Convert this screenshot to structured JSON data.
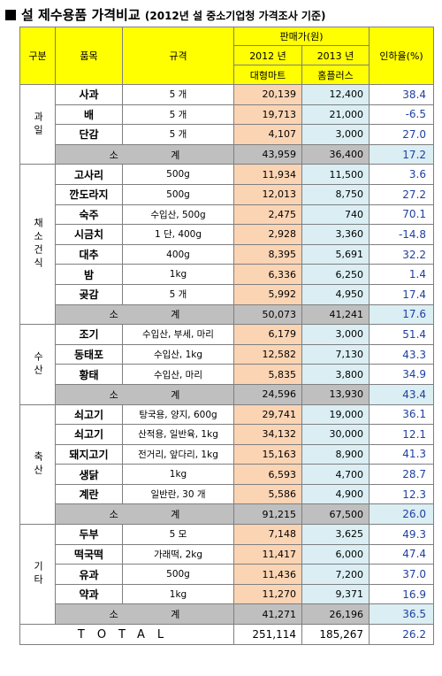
{
  "title": {
    "main": "설 제수용품 가격비교",
    "sub": "(2012년 설 중소기업청 가격조사 기준)"
  },
  "header": {
    "group": "구분",
    "item": "품목",
    "spec": "규격",
    "price": "판매가(원)",
    "y2012": "2012 년",
    "y2013": "2013 년",
    "store2012": "대형마트",
    "store2013": "홈플러스",
    "rate": "인하율(%)"
  },
  "groups": [
    {
      "name": "과일",
      "items": [
        {
          "name": "사과",
          "spec": "5 개",
          "p2012": "20,139",
          "p2013": "12,400",
          "rate": "38.4"
        },
        {
          "name": "배",
          "spec": "5 개",
          "p2012": "19,713",
          "p2013": "21,000",
          "rate": "-6.5"
        },
        {
          "name": "단감",
          "spec": "5 개",
          "p2012": "4,107",
          "p2013": "3,000",
          "rate": "27.0"
        }
      ],
      "subtotal": {
        "label": "소 계",
        "p2012": "43,959",
        "p2013": "36,400",
        "rate": "17.2"
      }
    },
    {
      "name": "채소건식",
      "items": [
        {
          "name": "고사리",
          "spec": "500g",
          "p2012": "11,934",
          "p2013": "11,500",
          "rate": "3.6"
        },
        {
          "name": "깐도라지",
          "spec": "500g",
          "p2012": "12,013",
          "p2013": "8,750",
          "rate": "27.2"
        },
        {
          "name": "숙주",
          "spec": "수입산, 500g",
          "p2012": "2,475",
          "p2013": "740",
          "rate": "70.1"
        },
        {
          "name": "시금치",
          "spec": "1 단, 400g",
          "p2012": "2,928",
          "p2013": "3,360",
          "rate": "-14.8"
        },
        {
          "name": "대추",
          "spec": "400g",
          "p2012": "8,395",
          "p2013": "5,691",
          "rate": "32.2"
        },
        {
          "name": "밤",
          "spec": "1kg",
          "p2012": "6,336",
          "p2013": "6,250",
          "rate": "1.4"
        },
        {
          "name": "곶감",
          "spec": "5 개",
          "p2012": "5,992",
          "p2013": "4,950",
          "rate": "17.4"
        }
      ],
      "subtotal": {
        "label": "소 계",
        "p2012": "50,073",
        "p2013": "41,241",
        "rate": "17.6"
      }
    },
    {
      "name": "수산",
      "items": [
        {
          "name": "조기",
          "spec": "수입산, 부세, 마리",
          "p2012": "6,179",
          "p2013": "3,000",
          "rate": "51.4"
        },
        {
          "name": "동태포",
          "spec": "수입산, 1kg",
          "p2012": "12,582",
          "p2013": "7,130",
          "rate": "43.3"
        },
        {
          "name": "황태",
          "spec": "수입산, 마리",
          "p2012": "5,835",
          "p2013": "3,800",
          "rate": "34.9"
        }
      ],
      "subtotal": {
        "label": "소 계",
        "p2012": "24,596",
        "p2013": "13,930",
        "rate": "43.4"
      }
    },
    {
      "name": "축산",
      "items": [
        {
          "name": "쇠고기",
          "spec": "탕국용, 양지, 600g",
          "p2012": "29,741",
          "p2013": "19,000",
          "rate": "36.1"
        },
        {
          "name": "쇠고기",
          "spec": "산적용, 일반육, 1kg",
          "p2012": "34,132",
          "p2013": "30,000",
          "rate": "12.1"
        },
        {
          "name": "돼지고기",
          "spec": "전거리, 앞다리, 1kg",
          "p2012": "15,163",
          "p2013": "8,900",
          "rate": "41.3"
        },
        {
          "name": "생닭",
          "spec": "1kg",
          "p2012": "6,593",
          "p2013": "4,700",
          "rate": "28.7"
        },
        {
          "name": "계란",
          "spec": "일반란, 30 개",
          "p2012": "5,586",
          "p2013": "4,900",
          "rate": "12.3"
        }
      ],
      "subtotal": {
        "label": "소 계",
        "p2012": "91,215",
        "p2013": "67,500",
        "rate": "26.0"
      }
    },
    {
      "name": "기타",
      "items": [
        {
          "name": "두부",
          "spec": "5 모",
          "p2012": "7,148",
          "p2013": "3,625",
          "rate": "49.3"
        },
        {
          "name": "떡국떡",
          "spec": "가래떡, 2kg",
          "p2012": "11,417",
          "p2013": "6,000",
          "rate": "47.4"
        },
        {
          "name": "유과",
          "spec": "500g",
          "p2012": "11,436",
          "p2013": "7,200",
          "rate": "37.0"
        },
        {
          "name": "약과",
          "spec": "1kg",
          "p2012": "11,270",
          "p2013": "9,371",
          "rate": "16.9"
        }
      ],
      "subtotal": {
        "label": "소 계",
        "p2012": "41,271",
        "p2013": "26,196",
        "rate": "36.5"
      }
    }
  ],
  "total": {
    "label": "TOTAL",
    "p2012": "251,114",
    "p2013": "185,267",
    "rate": "26.2"
  }
}
